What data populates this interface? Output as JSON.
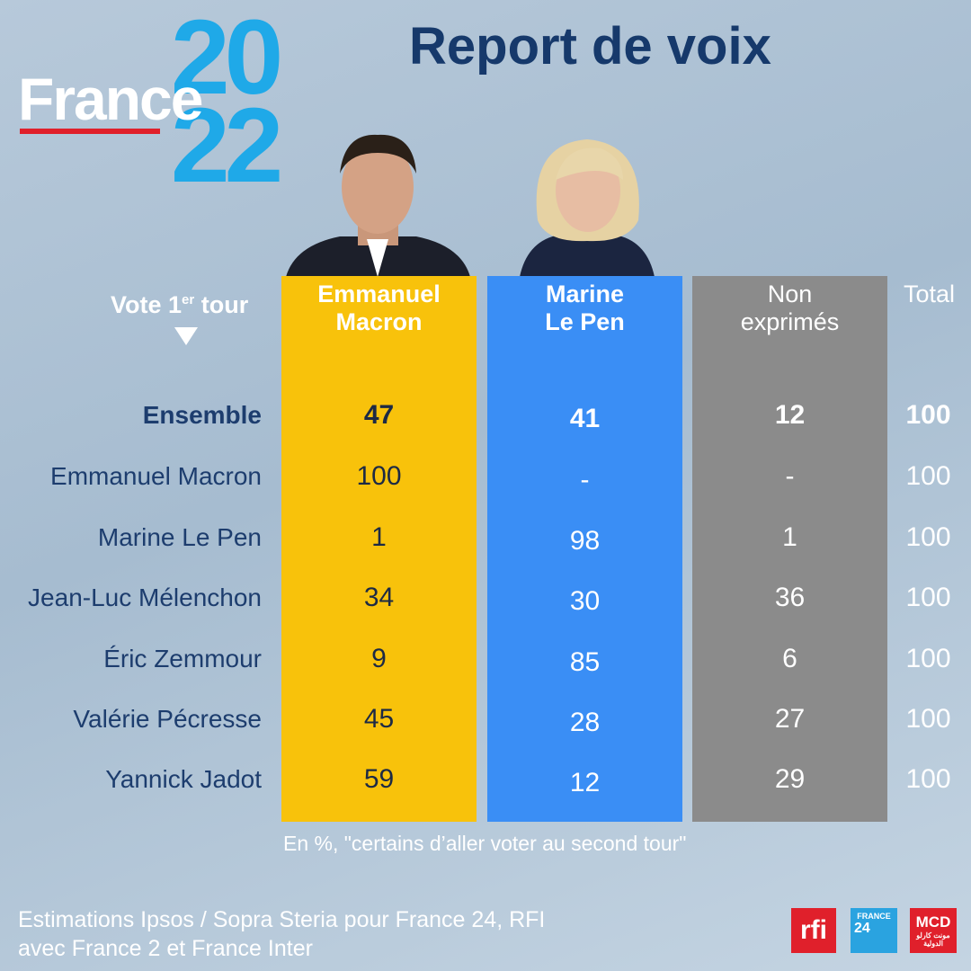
{
  "logo": {
    "word": "France",
    "year_top": "20",
    "year_bottom": "22"
  },
  "title": "Report de voix",
  "row_header": {
    "parts": [
      "Vote 1",
      "er",
      "tour"
    ]
  },
  "columns": [
    {
      "lines": [
        "Emmanuel",
        "Macron"
      ]
    },
    {
      "lines": [
        "Marine",
        "Le Pen"
      ]
    },
    {
      "lines": [
        "Non",
        "exprimés"
      ]
    },
    {
      "lines": [
        "Total"
      ]
    }
  ],
  "rows": [
    {
      "label": "Ensemble",
      "values": [
        47,
        41,
        12,
        100
      ]
    },
    {
      "label": "Emmanuel Macron",
      "values": [
        100,
        "-",
        "-",
        100
      ]
    },
    {
      "label": "Marine Le Pen",
      "values": [
        1,
        98,
        1,
        100
      ]
    },
    {
      "label": "Jean-Luc Mélenchon",
      "values": [
        34,
        30,
        36,
        100
      ]
    },
    {
      "label": "Éric Zemmour",
      "values": [
        9,
        85,
        6,
        100
      ]
    },
    {
      "label": "Valérie Pécresse",
      "values": [
        45,
        28,
        27,
        100
      ]
    },
    {
      "label": "Yannick Jadot",
      "values": [
        59,
        12,
        29,
        100
      ]
    }
  ],
  "note": "En %, \"certains d’aller voter au second tour\"",
  "source": [
    "Estimations Ipsos / Sopra Steria pour France 24, RFI",
    "avec France 2 et France Inter"
  ],
  "brands": {
    "rfi": "rfi",
    "france24_top": "FRANCE",
    "france24_num": "24",
    "mcd": "MCD",
    "mcd_sub": "مونت كارلو الدولية"
  }
}
